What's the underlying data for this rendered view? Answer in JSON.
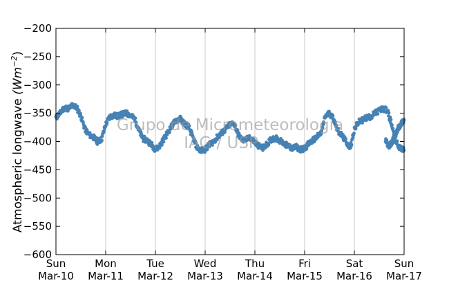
{
  "chart_data": {
    "type": "scatter",
    "title": "",
    "xlabel": "",
    "ylabel": "Atmospheric longwave",
    "ylabel_unit": "(Wm",
    "ylabel_unit_exp": "−2",
    "ylabel_unit_close": ")",
    "ylim": [
      -600,
      -200
    ],
    "yticks": [
      -200,
      -250,
      -300,
      -350,
      -400,
      -450,
      -500,
      -550,
      -600
    ],
    "ytick_labels": [
      "−200",
      "−250",
      "−300",
      "−350",
      "−400",
      "−450",
      "−500",
      "−550",
      "−600"
    ],
    "xlim": [
      "Sun Mar-10",
      "Sun Mar-17"
    ],
    "xticks": [
      {
        "day": "Sun",
        "date": "Mar-10"
      },
      {
        "day": "Mon",
        "date": "Mar-11"
      },
      {
        "day": "Tue",
        "date": "Mar-12"
      },
      {
        "day": "Wed",
        "date": "Mar-13"
      },
      {
        "day": "Thu",
        "date": "Mar-14"
      },
      {
        "day": "Fri",
        "date": "Mar-15"
      },
      {
        "day": "Sat",
        "date": "Mar-16"
      },
      {
        "day": "Sun",
        "date": "Mar-17"
      }
    ],
    "grid": "vertical",
    "marker_color": "#4682b4",
    "watermark": [
      "Grupo de Micrometeorologia",
      "IAG / USP"
    ],
    "series": [
      {
        "x": [
          "Mar-10 00:00",
          "Mar-10 02:00",
          "Mar-10 04:00",
          "Mar-10 06:00",
          "Mar-10 08:00",
          "Mar-10 10:00",
          "Mar-10 12:00",
          "Mar-10 14:00",
          "Mar-10 16:00",
          "Mar-10 18:00",
          "Mar-10 20:00",
          "Mar-10 22:00",
          "Mar-11 00:00",
          "Mar-11 02:00",
          "Mar-11 04:00",
          "Mar-11 06:00",
          "Mar-11 08:00",
          "Mar-11 10:00",
          "Mar-11 12:00",
          "Mar-11 14:00",
          "Mar-11 16:00",
          "Mar-11 18:00",
          "Mar-11 20:00",
          "Mar-11 22:00",
          "Mar-12 00:00",
          "Mar-12 02:00",
          "Mar-12 04:00",
          "Mar-12 06:00",
          "Mar-12 08:00",
          "Mar-12 10:00",
          "Mar-12 12:00",
          "Mar-12 14:00",
          "Mar-12 16:00",
          "Mar-12 18:00",
          "Mar-12 20:00",
          "Mar-12 22:00",
          "Mar-13 00:00",
          "Mar-13 02:00",
          "Mar-13 04:00",
          "Mar-13 06:00",
          "Mar-13 08:00",
          "Mar-13 10:00",
          "Mar-13 12:00",
          "Mar-13 14:00",
          "Mar-13 16:00",
          "Mar-13 18:00",
          "Mar-13 20:00",
          "Mar-13 22:00",
          "Mar-14 00:00",
          "Mar-14 02:00",
          "Mar-14 04:00",
          "Mar-14 06:00",
          "Mar-14 08:00",
          "Mar-14 10:00",
          "Mar-14 12:00",
          "Mar-14 14:00",
          "Mar-14 16:00",
          "Mar-14 18:00",
          "Mar-14 20:00",
          "Mar-14 22:00",
          "Mar-15 00:00",
          "Mar-15 02:00",
          "Mar-15 04:00",
          "Mar-15 06:00",
          "Mar-15 08:00",
          "Mar-15 10:00",
          "Mar-15 12:00",
          "Mar-15 14:00",
          "Mar-15 16:00",
          "Mar-15 18:00",
          "Mar-15 20:00",
          "Mar-15 22:00",
          "Mar-16 00:00",
          "Mar-16 02:00",
          "Mar-16 04:00",
          "Mar-16 06:00",
          "Mar-16 08:00",
          "Mar-16 10:00",
          "Mar-16 12:00",
          "Mar-16 14:00",
          "Mar-16 16:00",
          "Mar-16 18:00",
          "Mar-16 20:00",
          "Mar-16 22:00",
          "Mar-17 00:00"
        ],
        "y": [
          -358,
          -350,
          -340,
          -342,
          -336,
          -340,
          -355,
          -378,
          -388,
          -392,
          -400,
          -396,
          -370,
          -356,
          -354,
          -355,
          -352,
          -350,
          -354,
          -360,
          -380,
          -395,
          -398,
          -405,
          -414,
          -408,
          -396,
          -384,
          -372,
          -362,
          -360,
          -368,
          -374,
          -392,
          -410,
          -416,
          -414,
          -406,
          -400,
          -392,
          -385,
          -378,
          -370,
          -368,
          -388,
          -398,
          -396,
          -394,
          -402,
          -408,
          -412,
          -404,
          -396,
          -394,
          -398,
          -404,
          -408,
          -412,
          -410,
          -414,
          -412,
          -404,
          -398,
          -392,
          -385,
          -355,
          -350,
          -360,
          -380,
          -390,
          -400,
          -412,
          -378,
          -366,
          -362,
          -358,
          -356,
          -350,
          -345,
          -342,
          -346,
          -370,
          -400,
          -412,
          -415
        ]
      },
      {
        "x": [
          "Mar-17 00:00",
          "Mar-16 23:00",
          "Mar-16 22:00",
          "Mar-16 21:00",
          "Mar-16 20:00",
          "Mar-16 19:00",
          "Mar-16 18:00",
          "Mar-16 17:00",
          "Mar-16 16:00",
          "Mar-16 15:00"
        ],
        "y": [
          -362,
          -366,
          -372,
          -378,
          -388,
          -395,
          -402,
          -408,
          -405,
          -398
        ]
      }
    ]
  }
}
